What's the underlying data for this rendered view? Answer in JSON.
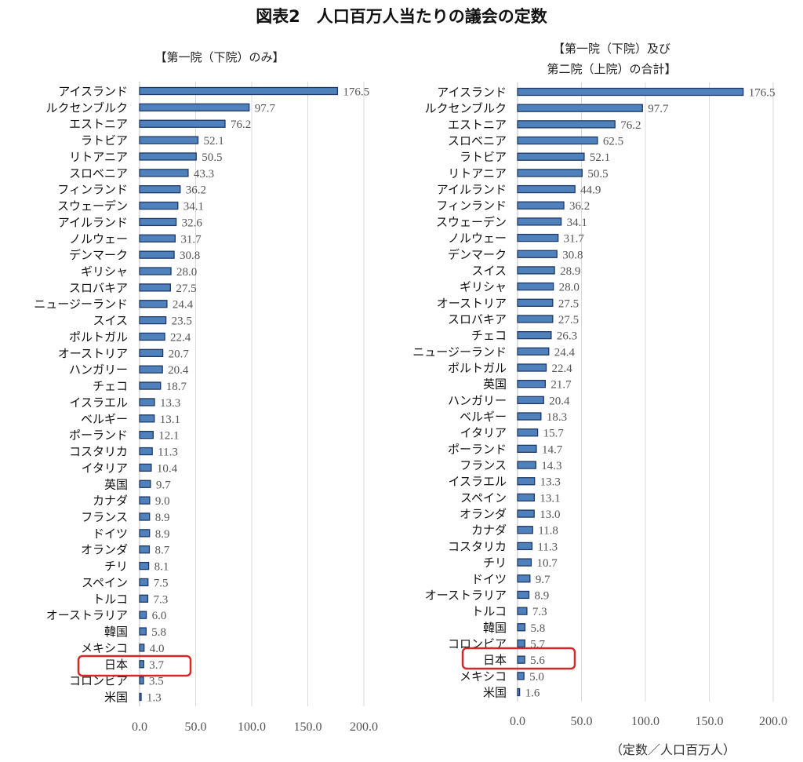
{
  "chart_data": {
    "title": "図表2　人口百万人当たりの議会の定数",
    "unit_label": "（定数／人口百万人）",
    "colors": {
      "bar_fill": "#4f81bd",
      "bar_stroke": "#1f3864",
      "highlight": "#d62828",
      "grid": "#d9d9d9"
    },
    "highlight_category": "日本",
    "charts": [
      {
        "type": "bar",
        "orientation": "horizontal",
        "subtitle": [
          "【第一院（下院）のみ】"
        ],
        "xlim": [
          0,
          200
        ],
        "ticks": [
          "0.0",
          "50.0",
          "100.0",
          "150.0",
          "200.0"
        ],
        "grid": true,
        "categories": [
          "アイスランド",
          "ルクセンブルク",
          "エストニア",
          "ラトビア",
          "リトアニア",
          "スロベニア",
          "フィンランド",
          "スウェーデン",
          "アイルランド",
          "ノルウェー",
          "デンマーク",
          "ギリシャ",
          "スロバキア",
          "ニュージーランド",
          "スイス",
          "ポルトガル",
          "オーストリア",
          "ハンガリー",
          "チェコ",
          "イスラエル",
          "ベルギー",
          "ポーランド",
          "コスタリカ",
          "イタリア",
          "英国",
          "カナダ",
          "フランス",
          "ドイツ",
          "オランダ",
          "チリ",
          "スペイン",
          "トルコ",
          "オーストラリア",
          "韓国",
          "メキシコ",
          "日本",
          "コロンビア",
          "米国"
        ],
        "values": [
          176.5,
          97.7,
          76.2,
          52.1,
          50.5,
          43.3,
          36.2,
          34.1,
          32.6,
          31.7,
          30.8,
          28.0,
          27.5,
          24.4,
          23.5,
          22.4,
          20.7,
          20.4,
          18.7,
          13.3,
          13.1,
          12.1,
          11.3,
          10.4,
          9.7,
          9.0,
          8.9,
          8.9,
          8.7,
          8.1,
          7.5,
          7.3,
          6.0,
          5.8,
          4.0,
          3.7,
          3.5,
          1.3
        ],
        "labels": [
          "176.5",
          "97.7",
          "76.2",
          "52.1",
          "50.5",
          "43.3",
          "36.2",
          "34.1",
          "32.6",
          "31.7",
          "30.8",
          "28.0",
          "27.5",
          "24.4",
          "23.5",
          "22.4",
          "20.7",
          "20.4",
          "18.7",
          "13.3",
          "13.1",
          "12.1",
          "11.3",
          "10.4",
          "9.7",
          "9.0",
          "8.9",
          "8.9",
          "8.7",
          "8.1",
          "7.5",
          "7.3",
          "6.0",
          "5.8",
          "4.0",
          "3.7",
          "3.5",
          "1.3"
        ]
      },
      {
        "type": "bar",
        "orientation": "horizontal",
        "subtitle": [
          "【第一院（下院）及び",
          "第二院（上院）の合計】"
        ],
        "xlim": [
          0,
          200
        ],
        "ticks": [
          "0.0",
          "50.0",
          "100.0",
          "150.0",
          "200.0"
        ],
        "grid": true,
        "categories": [
          "アイスランド",
          "ルクセンブルク",
          "エストニア",
          "スロベニア",
          "ラトビア",
          "リトアニア",
          "アイルランド",
          "フィンランド",
          "スウェーデン",
          "ノルウェー",
          "デンマーク",
          "スイス",
          "ギリシャ",
          "オーストリア",
          "スロバキア",
          "チェコ",
          "ニュージーランド",
          "ポルトガル",
          "英国",
          "ハンガリー",
          "ベルギー",
          "イタリア",
          "ポーランド",
          "フランス",
          "イスラエル",
          "スペイン",
          "オランダ",
          "カナダ",
          "コスタリカ",
          "チリ",
          "ドイツ",
          "オーストラリア",
          "トルコ",
          "韓国",
          "コロンビア",
          "日本",
          "メキシコ",
          "米国"
        ],
        "values": [
          176.5,
          97.7,
          76.2,
          62.5,
          52.1,
          50.5,
          44.9,
          36.2,
          34.1,
          31.7,
          30.8,
          28.9,
          28.0,
          27.5,
          27.5,
          26.3,
          24.4,
          22.4,
          21.7,
          20.4,
          18.3,
          15.7,
          14.7,
          14.3,
          13.3,
          13.1,
          13.0,
          11.8,
          11.3,
          10.7,
          9.7,
          8.9,
          7.3,
          5.8,
          5.7,
          5.6,
          5.0,
          1.6
        ],
        "labels": [
          "176.5",
          "97.7",
          "76.2",
          "62.5",
          "52.1",
          "50.5",
          "44.9",
          "36.2",
          "34.1",
          "31.7",
          "30.8",
          "28.9",
          "28.0",
          "27.5",
          "27.5",
          "26.3",
          "24.4",
          "22.4",
          "21.7",
          "20.4",
          "18.3",
          "15.7",
          "14.7",
          "14.3",
          "13.3",
          "13.1",
          "13.0",
          "11.8",
          "11.3",
          "10.7",
          "9.7",
          "8.9",
          "7.3",
          "5.8",
          "5.7",
          "5.6",
          "5.0",
          "1.6"
        ]
      }
    ]
  }
}
